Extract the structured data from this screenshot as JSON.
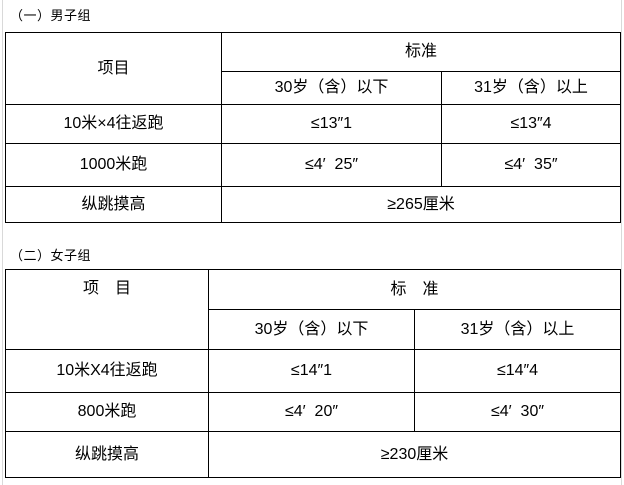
{
  "page": {
    "background_color": "#ffffff",
    "table_border_color": "#000000",
    "edge_line_color": "#d9d9d9",
    "text_color": "#000000"
  },
  "men": {
    "caption": "（一）男子组",
    "item_header": "项目",
    "standard_header": "标准",
    "age_under": "30岁（含）以下",
    "age_over": "31岁（含）以上",
    "rows": [
      {
        "item": "10米×4往返跑",
        "under": "≤13″1",
        "over": "≤13″4"
      },
      {
        "item": "1000米跑",
        "under": "≤4′  25″",
        "over": "≤4′  35″"
      },
      {
        "item": "纵跳摸高",
        "merged": "≥265厘米"
      }
    ]
  },
  "women": {
    "caption": "（二）女子组",
    "item_header": "项　目",
    "standard_header": "标　准",
    "age_under": "30岁（含）以下",
    "age_over": "31岁（含）以上",
    "rows": [
      {
        "item": "10米X4往返跑",
        "under": "≤14″1",
        "over": "≤14″4"
      },
      {
        "item": "800米跑",
        "under": "≤4′  20″",
        "over": "≤4′  30″"
      },
      {
        "item": "纵跳摸高",
        "merged": "≥230厘米"
      }
    ]
  }
}
